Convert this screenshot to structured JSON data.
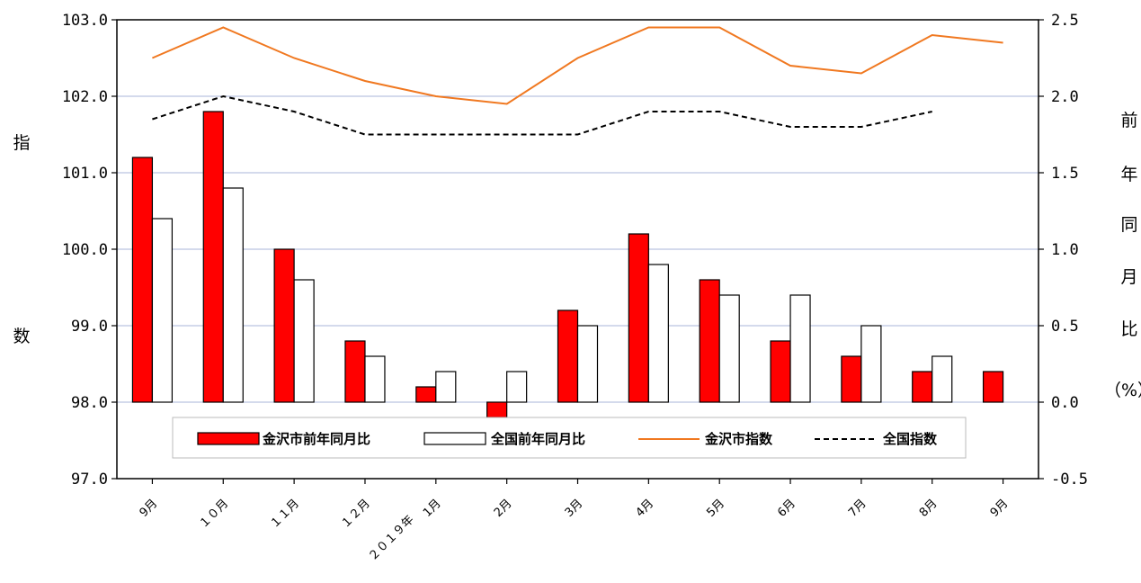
{
  "chart_data": {
    "type": "bar",
    "categories": [
      "9月",
      "１０月",
      "１１月",
      "１２月",
      "1月",
      "2月",
      "3月",
      "4月",
      "5月",
      "6月",
      "7月",
      "8月",
      "9月"
    ],
    "year_marker": "２０１９年",
    "left_axis": {
      "label_chars": [
        "指",
        "数"
      ],
      "ylim": [
        97.0,
        103.0
      ],
      "ticks": [
        "97.0",
        "98.0",
        "99.0",
        "100.0",
        "101.0",
        "102.0",
        "103.0"
      ]
    },
    "right_axis": {
      "label_chars": [
        "前",
        "年",
        "同",
        "月",
        "比",
        "（%）"
      ],
      "ylim": [
        -0.5,
        2.5
      ],
      "ticks": [
        "-0.5",
        "0.0",
        "0.5",
        "1.0",
        "1.5",
        "2.0",
        "2.5"
      ]
    },
    "series": [
      {
        "name": "金沢市前年同月比",
        "type": "bar",
        "axis": "right",
        "color": "#ff0000",
        "values": [
          1.6,
          1.9,
          1.0,
          0.4,
          0.1,
          -0.1,
          0.6,
          1.1,
          0.8,
          0.4,
          0.3,
          0.2,
          0.2
        ]
      },
      {
        "name": "全国前年同月比",
        "type": "bar",
        "axis": "right",
        "color": "#ffffff",
        "values": [
          1.2,
          1.4,
          0.8,
          0.3,
          0.2,
          0.2,
          0.5,
          0.9,
          0.7,
          0.7,
          0.5,
          0.3,
          null
        ]
      },
      {
        "name": "金沢市指数",
        "type": "line",
        "axis": "left",
        "color": "#f07820",
        "values": [
          102.5,
          102.9,
          102.5,
          102.2,
          102.0,
          101.9,
          102.5,
          102.9,
          102.9,
          102.4,
          102.3,
          102.8,
          102.7
        ]
      },
      {
        "name": "全国指数",
        "type": "line",
        "axis": "left",
        "color": "#000000",
        "dashed": true,
        "values": [
          101.7,
          102.0,
          101.8,
          101.5,
          101.5,
          101.5,
          101.5,
          101.8,
          101.8,
          101.6,
          101.6,
          101.8,
          null
        ]
      }
    ],
    "grid": true,
    "legend_position": "bottom-center"
  }
}
